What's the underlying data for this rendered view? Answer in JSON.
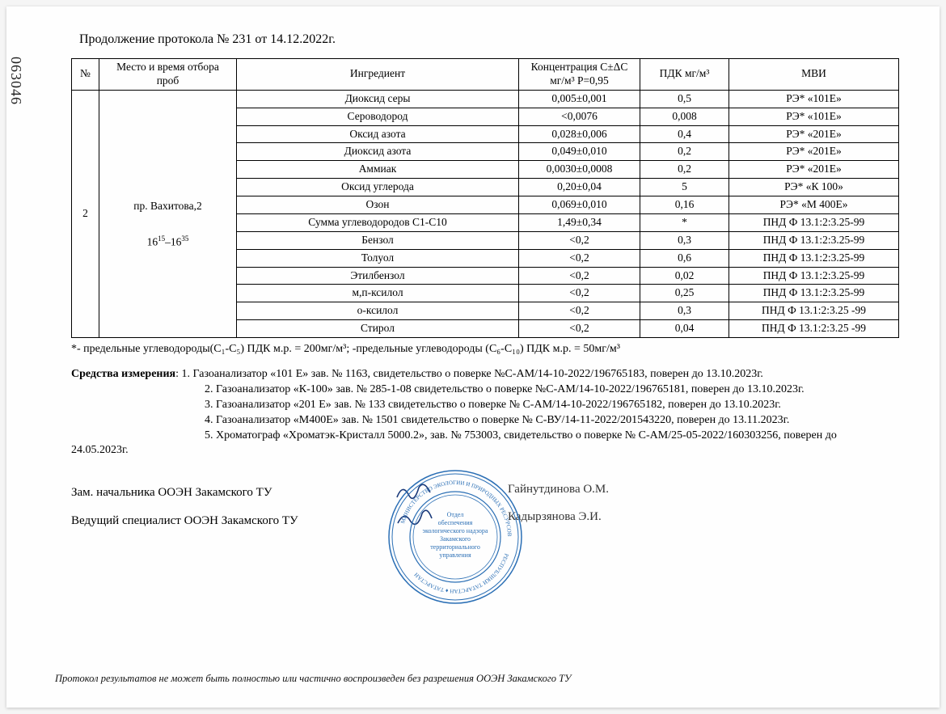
{
  "side_number": "063046",
  "continuation_title": "Продолжение протокола № 231 от 14.12.2022г.",
  "table": {
    "headers": {
      "num": "№",
      "place": "Место и время отбора проб",
      "ingredient": "Ингредиент",
      "concentration": "Концентрация C±ΔC  мг/м³ P=0,95",
      "pdk": "ПДК мг/м³",
      "mvi": "МВИ"
    },
    "group_num": "2",
    "place_address": "пр. Вахитова,2",
    "place_time_pre": "16",
    "place_time_sup1": "15",
    "place_time_mid": "–16",
    "place_time_sup2": "35",
    "rows": [
      {
        "ing": "Диоксид серы",
        "conc": "0,005±0,001",
        "pdk": "0,5",
        "mvi": "РЭ* «101Е»"
      },
      {
        "ing": "Сероводород",
        "conc": "<0,0076",
        "pdk": "0,008",
        "mvi": "РЭ* «101Е»"
      },
      {
        "ing": "Оксид азота",
        "conc": "0,028±0,006",
        "pdk": "0,4",
        "mvi": "РЭ* «201Е»"
      },
      {
        "ing": "Диоксид азота",
        "conc": "0,049±0,010",
        "pdk": "0,2",
        "mvi": "РЭ* «201Е»"
      },
      {
        "ing": "Аммиак",
        "conc": "0,0030±0,0008",
        "pdk": "0,2",
        "mvi": "РЭ* «201Е»"
      },
      {
        "ing": "Оксид углерода",
        "conc": "0,20±0,04",
        "pdk": "5",
        "mvi": "РЭ* «К 100»"
      },
      {
        "ing": "Озон",
        "conc": "0,069±0,010",
        "pdk": "0,16",
        "mvi": "РЭ* «М 400Е»"
      },
      {
        "ing": "Сумма углеводородов С1-С10",
        "conc": "1,49±0,34",
        "pdk": "*",
        "mvi": "ПНД Ф 13.1:2:3.25-99"
      },
      {
        "ing": "Бензол",
        "conc": "<0,2",
        "pdk": "0,3",
        "mvi": "ПНД Ф 13.1:2:3.25-99"
      },
      {
        "ing": "Толуол",
        "conc": "<0,2",
        "pdk": "0,6",
        "mvi": "ПНД Ф 13.1:2:3.25-99"
      },
      {
        "ing": "Этилбензол",
        "conc": "<0,2",
        "pdk": "0,02",
        "mvi": "ПНД Ф 13.1:2:3.25-99"
      },
      {
        "ing": "м,п-ксилол",
        "conc": "<0,2",
        "pdk": "0,25",
        "mvi": "ПНД Ф 13.1:2:3.25-99"
      },
      {
        "ing": "о-ксилол",
        "conc": "<0,2",
        "pdk": "0,3",
        "mvi": "ПНД Ф 13.1:2:3.25 -99"
      },
      {
        "ing": "Стирол",
        "conc": "<0,2",
        "pdk": "0,04",
        "mvi": "ПНД Ф 13.1:2:3.25 -99"
      }
    ]
  },
  "footnote": "*- предельные углеводороды(C₁-C₅) ПДК м.р. = 200мг/м³;   -предельные углеводороды (C₆-C₁₀) ПДК м.р. = 50мг/м³",
  "instruments": {
    "label": "Средства измерения",
    "lines": [
      "1. Газоанализатор «101 Е» зав. № 1163, свидетельство о поверке №С-АМ/14-10-2022/196765183, поверен до 13.10.2023г.",
      "2. Газоанализатор «К-100» зав. № 285-1-08 свидетельство о поверке №С-АМ/14-10-2022/196765181, поверен до 13.10.2023г.",
      "3. Газоанализатор «201 Е» зав. № 133 свидетельство о поверке  № С-АМ/14-10-2022/196765182, поверен до 13.10.2023г.",
      "4. Газоанализатор «М400Е» зав. № 1501 свидетельство о поверке № С-ВУ/14-11-2022/201543220, поверен до 13.11.2023г.",
      "5. Хроматограф «Хроматэк-Кристалл 5000.2», зав. № 753003, свидетельство о поверке № С-АМ/25-05-2022/160303256, поверен до"
    ],
    "tail_date": "24.05.2023г."
  },
  "signatures": {
    "line1_title": "Зам. начальника  ООЭН Закамского ТУ",
    "line1_name": "Гайнутдинова О.М.",
    "line2_title": "Ведущий специалист ООЭН Закамского ТУ",
    "line2_name": "Кадырзянова Э.И."
  },
  "stamp": {
    "color": "#2b6fb5",
    "inner_text1": "Отдел",
    "inner_text2": "обеспечения",
    "inner_text3": "экологического надзора",
    "inner_text4": "Закамского",
    "inner_text5": "территориального",
    "inner_text6": "управления"
  },
  "disclaimer": "Протокол результатов не может быть полностью или частично воспроизведен  без разрешения  ООЭН Закамского ТУ",
  "colors": {
    "background": "#fefefe",
    "text": "#000000",
    "stamp": "#2b6fb5",
    "scribble": "#1a3a7a"
  }
}
